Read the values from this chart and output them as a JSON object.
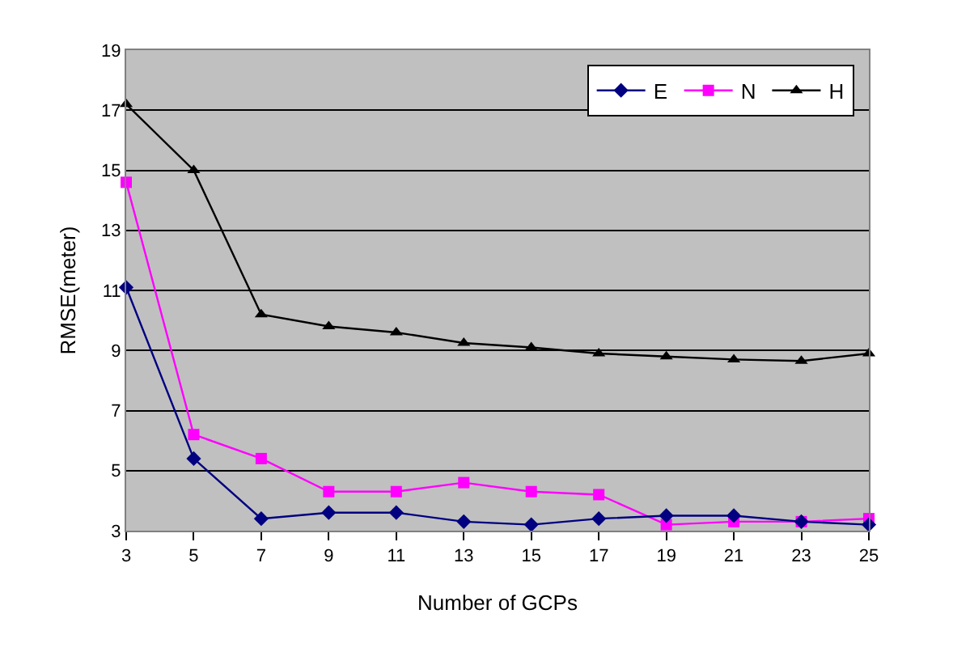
{
  "chart_data": {
    "type": "line",
    "xlabel": "Number of GCPs",
    "ylabel": "RMSE(meter)",
    "x": [
      3,
      5,
      7,
      9,
      11,
      13,
      15,
      17,
      19,
      21,
      23,
      25
    ],
    "series": [
      {
        "name": "E",
        "color": "#000080",
        "marker": "diamond",
        "values": [
          11.1,
          5.4,
          3.4,
          3.6,
          3.6,
          3.3,
          3.2,
          3.4,
          3.5,
          3.5,
          3.3,
          3.2
        ]
      },
      {
        "name": "N",
        "color": "#ff00ff",
        "marker": "square",
        "values": [
          14.6,
          6.2,
          5.4,
          4.3,
          4.3,
          4.6,
          4.3,
          4.2,
          3.2,
          3.3,
          3.3,
          3.4
        ]
      },
      {
        "name": "H",
        "color": "#000000",
        "marker": "triangle",
        "values": [
          17.2,
          15.0,
          10.2,
          9.8,
          9.6,
          9.25,
          9.1,
          8.9,
          8.8,
          8.7,
          8.65,
          8.9
        ]
      }
    ],
    "xlim": [
      3,
      25
    ],
    "xticks": [
      3,
      5,
      7,
      9,
      11,
      13,
      15,
      17,
      19,
      21,
      23,
      25
    ],
    "ylim": [
      3,
      19
    ],
    "yticks": [
      3,
      5,
      7,
      9,
      11,
      13,
      15,
      17,
      19
    ],
    "grid": "y",
    "legend": "top right",
    "line_style": "solid"
  }
}
